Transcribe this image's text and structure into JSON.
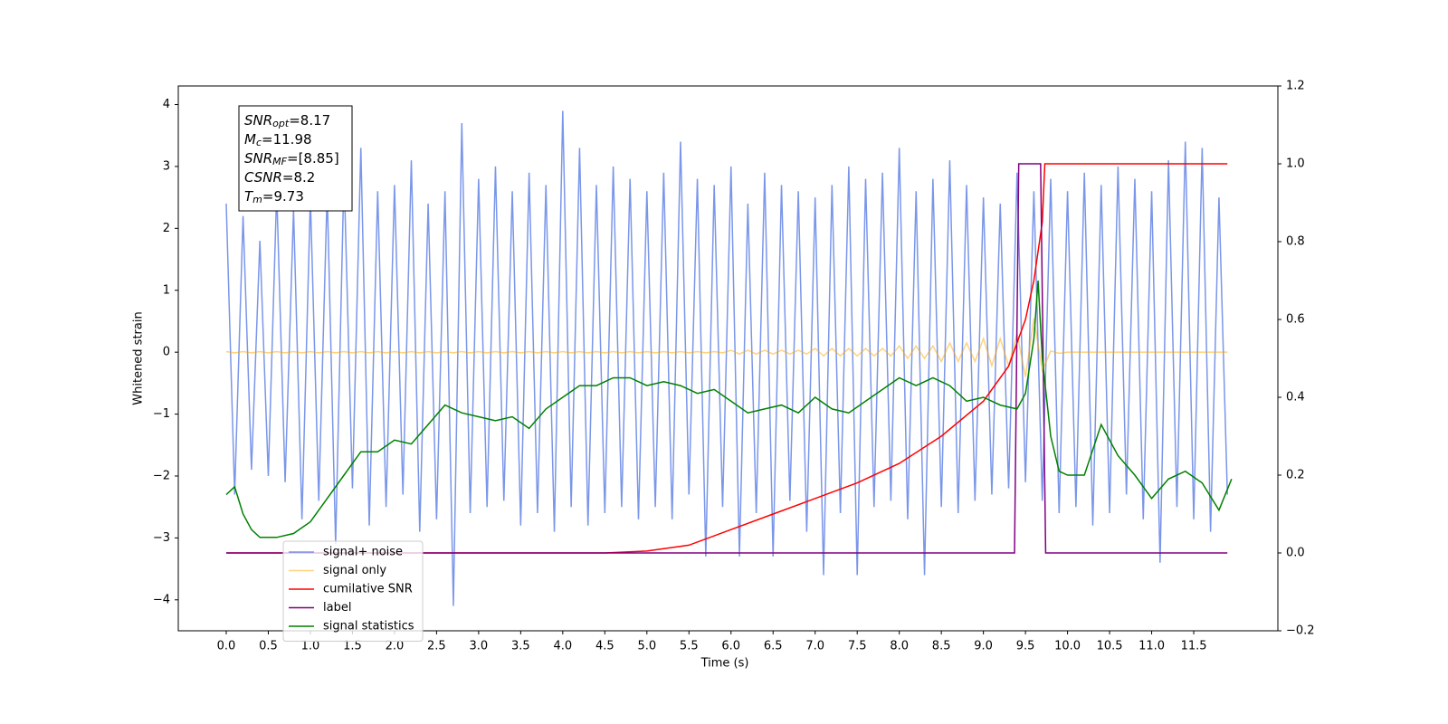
{
  "chart_data": {
    "type": "line",
    "xlabel": "Time (s)",
    "ylabel": "Whitened strain",
    "xlim": [
      -0.57,
      12.5
    ],
    "ylim": [
      -4.5,
      4.3
    ],
    "y2lim": [
      -0.2,
      1.2
    ],
    "xticks": [
      {
        "value": 0,
        "label": "0.0"
      },
      0.5,
      {
        "value": 1,
        "label": "1.0"
      },
      1.5,
      {
        "value": 2,
        "label": "2.0"
      },
      2.5,
      {
        "value": 3,
        "label": "3.0"
      },
      3.5,
      {
        "value": 4,
        "label": "4.0"
      },
      4.5,
      {
        "value": 5,
        "label": "5.0"
      },
      5.5,
      {
        "value": 6,
        "label": "6.0"
      },
      6.5,
      {
        "value": 7,
        "label": "7.0"
      },
      7.5,
      {
        "value": 8,
        "label": "8.0"
      },
      8.5,
      {
        "value": 9,
        "label": "9.0"
      },
      9.5,
      {
        "value": 10,
        "label": "10.0"
      },
      10.5,
      {
        "value": 11,
        "label": "11.0"
      },
      11.5
    ],
    "yticks": [
      {
        "value": -4,
        "label": "−4"
      },
      {
        "value": -3,
        "label": "−3"
      },
      {
        "value": -2,
        "label": "−2"
      },
      {
        "value": -1,
        "label": "−1"
      },
      0,
      1,
      2,
      3,
      4
    ],
    "y2ticks": [
      {
        "value": -0.2,
        "label": "−0.2"
      },
      {
        "value": 0,
        "label": "0.0"
      },
      0.2,
      0.4,
      0.6,
      0.8,
      {
        "value": 1,
        "label": "1.0"
      },
      1.2
    ],
    "x": [
      0,
      0.1,
      0.2,
      0.3,
      0.4,
      0.5,
      0.6,
      0.7,
      0.8,
      0.9,
      1,
      1.1,
      1.2,
      1.3,
      1.4,
      1.5,
      1.6,
      1.7,
      1.8,
      1.9,
      2,
      2.1,
      2.2,
      2.3,
      2.4,
      2.5,
      2.6,
      2.7,
      2.8,
      2.9,
      3,
      3.1,
      3.2,
      3.3,
      3.4,
      3.5,
      3.6,
      3.7,
      3.8,
      3.9,
      4,
      4.1,
      4.2,
      4.3,
      4.4,
      4.5,
      4.6,
      4.7,
      4.8,
      4.9,
      5,
      5.1,
      5.2,
      5.3,
      5.4,
      5.5,
      5.6,
      5.7,
      5.8,
      5.9,
      6,
      6.1,
      6.2,
      6.3,
      6.4,
      6.5,
      6.6,
      6.7,
      6.8,
      6.9,
      7,
      7.1,
      7.2,
      7.3,
      7.4,
      7.5,
      7.6,
      7.7,
      7.8,
      7.9,
      8,
      8.1,
      8.2,
      8.3,
      8.4,
      8.5,
      8.6,
      8.7,
      8.8,
      8.9,
      9,
      9.1,
      9.2,
      9.3,
      9.4,
      9.5,
      9.6,
      9.7,
      9.8,
      9.9,
      10,
      10.1,
      10.2,
      10.3,
      10.4,
      10.5,
      10.6,
      10.7,
      10.8,
      10.9,
      11,
      11.1,
      11.2,
      11.3,
      11.4,
      11.5,
      11.6,
      11.7,
      11.8,
      11.9
    ],
    "series": [
      {
        "name": "signal+ noise",
        "color": "#4169e1",
        "alpha": 0.7,
        "values": [
          2.4,
          -2.3,
          2.2,
          -1.9,
          1.8,
          -2.0,
          2.6,
          -2.1,
          2.3,
          -2.7,
          2.5,
          -2.4,
          2.6,
          -3.1,
          2.9,
          -2.2,
          3.3,
          -2.8,
          2.6,
          -2.5,
          2.7,
          -2.3,
          3.1,
          -2.9,
          2.4,
          -2.7,
          2.6,
          -4.1,
          3.7,
          -2.6,
          2.8,
          -2.5,
          3.0,
          -2.4,
          2.6,
          -2.8,
          2.9,
          -2.6,
          2.7,
          -2.9,
          3.9,
          -2.5,
          3.3,
          -2.8,
          2.7,
          -2.6,
          3.0,
          -2.5,
          2.8,
          -2.7,
          2.6,
          -2.5,
          2.9,
          -2.7,
          3.4,
          -2.3,
          2.8,
          -3.3,
          2.7,
          -2.5,
          3.0,
          -3.3,
          2.4,
          -2.6,
          2.9,
          -3.3,
          2.7,
          -2.4,
          2.6,
          -2.9,
          2.5,
          -3.6,
          2.7,
          -2.6,
          3.0,
          -3.6,
          2.8,
          -2.5,
          2.9,
          -2.4,
          3.3,
          -2.7,
          2.6,
          -3.6,
          2.8,
          -2.5,
          3.1,
          -2.6,
          2.7,
          -2.4,
          2.5,
          -2.3,
          2.4,
          -2.2,
          2.9,
          -2.1,
          2.6,
          -2.4,
          2.8,
          -2.6,
          2.6,
          -2.5,
          2.9,
          -2.8,
          2.7,
          -2.6,
          3.0,
          -2.3,
          2.8,
          -2.7,
          2.6,
          -3.4,
          3.1,
          -2.5,
          3.4,
          -2.7,
          3.3,
          -2.9,
          2.5,
          -2.3
        ]
      },
      {
        "name": "signal only",
        "color": "#ffa500",
        "alpha": 0.5,
        "values": [
          0.01,
          -0.01,
          0.01,
          -0.01,
          0.01,
          -0.01,
          0.01,
          -0.01,
          0.01,
          -0.01,
          0.01,
          -0.01,
          0.01,
          -0.01,
          0.01,
          -0.01,
          0.01,
          -0.01,
          0.01,
          -0.01,
          0.01,
          -0.01,
          0.01,
          -0.01,
          0.01,
          -0.01,
          0.01,
          -0.01,
          0.01,
          -0.01,
          0.01,
          -0.01,
          0.01,
          -0.01,
          0.01,
          -0.01,
          0.01,
          -0.01,
          0.01,
          -0.01,
          0.01,
          -0.01,
          0.01,
          -0.01,
          0.01,
          -0.01,
          0.01,
          -0.01,
          0.01,
          -0.01,
          0.01,
          -0.01,
          0.01,
          -0.01,
          0.01,
          -0.01,
          0.01,
          -0.01,
          0.01,
          -0.01,
          0.03,
          -0.03,
          0.03,
          -0.03,
          0.03,
          -0.03,
          0.03,
          -0.03,
          0.03,
          -0.03,
          0.06,
          -0.06,
          0.06,
          -0.06,
          0.06,
          -0.06,
          0.06,
          -0.06,
          0.06,
          -0.06,
          0.1,
          -0.1,
          0.1,
          -0.1,
          0.1,
          -0.15,
          0.15,
          -0.15,
          0.15,
          -0.15,
          0.22,
          -0.22,
          0.22,
          -0.22,
          0.3,
          -0.4,
          0.55,
          -0.3,
          0.02,
          -0.02,
          0,
          0,
          0,
          0,
          0,
          0,
          0,
          0,
          0,
          0,
          0,
          0,
          0,
          0,
          0,
          0,
          0,
          0,
          0,
          0
        ]
      },
      {
        "name": "cumilative SNR",
        "color": "#ff0000",
        "axis": "y2",
        "x": [
          0,
          4.5,
          5.0,
          5.5,
          6.0,
          6.5,
          7.0,
          7.5,
          8.0,
          8.5,
          9.0,
          9.3,
          9.5,
          9.6,
          9.7,
          9.73,
          11.9
        ],
        "values": [
          0,
          0,
          0.005,
          0.02,
          0.06,
          0.1,
          0.14,
          0.18,
          0.23,
          0.3,
          0.39,
          0.48,
          0.6,
          0.7,
          0.85,
          1.0,
          1.0
        ]
      },
      {
        "name": "label",
        "color": "#800080",
        "axis": "y2",
        "x": [
          0,
          9.37,
          9.42,
          9.68,
          9.74,
          11.9
        ],
        "values": [
          0,
          0,
          1,
          1,
          0,
          0
        ]
      },
      {
        "name": "signal statistics",
        "color": "#008000",
        "axis": "y2",
        "x": [
          0,
          0.1,
          0.2,
          0.3,
          0.4,
          0.6,
          0.8,
          1.0,
          1.2,
          1.4,
          1.6,
          1.8,
          2.0,
          2.2,
          2.4,
          2.6,
          2.8,
          3.0,
          3.2,
          3.4,
          3.6,
          3.8,
          4.0,
          4.2,
          4.4,
          4.6,
          4.8,
          5.0,
          5.2,
          5.4,
          5.6,
          5.8,
          6.0,
          6.2,
          6.4,
          6.6,
          6.8,
          7.0,
          7.2,
          7.4,
          7.6,
          7.8,
          8.0,
          8.2,
          8.4,
          8.6,
          8.8,
          9.0,
          9.2,
          9.4,
          9.5,
          9.6,
          9.65,
          9.7,
          9.8,
          9.9,
          10.0,
          10.2,
          10.4,
          10.6,
          10.8,
          11.0,
          11.2,
          11.4,
          11.6,
          11.8,
          11.95
        ],
        "values": [
          0.15,
          0.17,
          0.1,
          0.06,
          0.04,
          0.04,
          0.05,
          0.08,
          0.14,
          0.2,
          0.26,
          0.26,
          0.29,
          0.28,
          0.33,
          0.38,
          0.36,
          0.35,
          0.34,
          0.35,
          0.32,
          0.37,
          0.4,
          0.43,
          0.43,
          0.45,
          0.45,
          0.43,
          0.44,
          0.43,
          0.41,
          0.42,
          0.39,
          0.36,
          0.37,
          0.38,
          0.36,
          0.4,
          0.37,
          0.36,
          0.39,
          0.42,
          0.45,
          0.43,
          0.45,
          0.43,
          0.39,
          0.4,
          0.38,
          0.37,
          0.41,
          0.55,
          0.7,
          0.5,
          0.3,
          0.21,
          0.2,
          0.2,
          0.33,
          0.25,
          0.2,
          0.14,
          0.19,
          0.21,
          0.18,
          0.11,
          0.19
        ]
      }
    ],
    "annotation_lines": [
      {
        "symbol": "SNR",
        "subscript": "opt",
        "text": "=8.17"
      },
      {
        "symbol": "M",
        "subscript": "c",
        "text": "=11.98"
      },
      {
        "symbol": "SNR",
        "subscript": "MF",
        "text": "=[8.85]"
      },
      {
        "symbol": "CSNR",
        "text": "=8.2"
      },
      {
        "symbol": "T",
        "subscript": "m",
        "text": "=9.73"
      }
    ],
    "legend": "lower left"
  }
}
